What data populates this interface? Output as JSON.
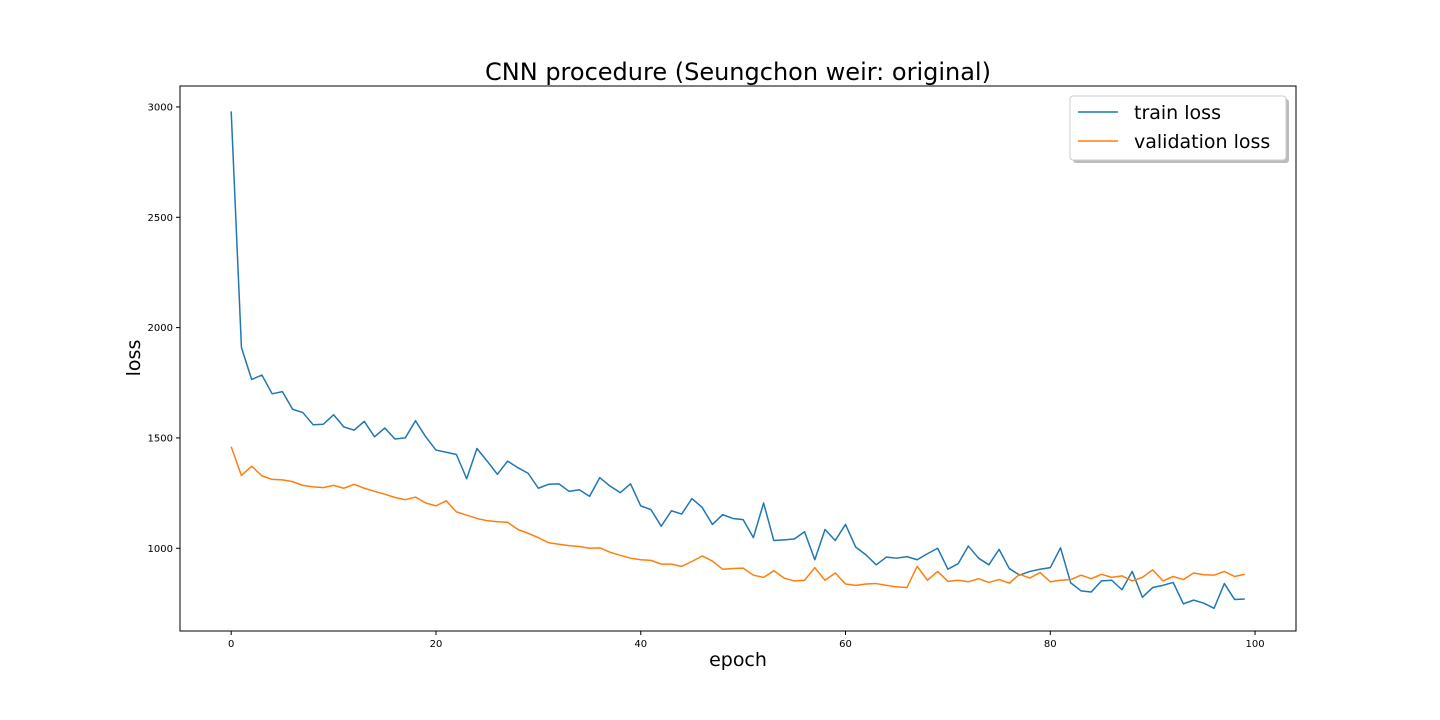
{
  "chart_data": {
    "type": "line",
    "title": "CNN procedure (Seungchon weir: original)",
    "xlabel": "epoch",
    "ylabel": "loss",
    "xlim": [
      -5,
      104
    ],
    "ylim": [
      625,
      3095
    ],
    "xticks": [
      0,
      20,
      40,
      60,
      80,
      100
    ],
    "yticks": [
      1000,
      1500,
      2000,
      2500,
      3000
    ],
    "grid": false,
    "legend_position": "top-right",
    "series": [
      {
        "name": "train loss",
        "color": "#1f77b4",
        "x": [
          0,
          1,
          2,
          3,
          4,
          5,
          6,
          7,
          8,
          9,
          10,
          11,
          12,
          13,
          14,
          15,
          16,
          17,
          18,
          19,
          20,
          21,
          22,
          23,
          24,
          25,
          26,
          27,
          28,
          29,
          30,
          31,
          32,
          33,
          34,
          35,
          36,
          37,
          38,
          39,
          40,
          41,
          42,
          43,
          44,
          45,
          46,
          47,
          48,
          49,
          50,
          51,
          52,
          53,
          54,
          55,
          56,
          57,
          58,
          59,
          60,
          61,
          62,
          63,
          64,
          65,
          66,
          67,
          68,
          69,
          70,
          71,
          72,
          73,
          74,
          75,
          76,
          77,
          78,
          79,
          80,
          81,
          82,
          83,
          84,
          85,
          86,
          87,
          88,
          89,
          90,
          91,
          92,
          93,
          94,
          95,
          96,
          97,
          98,
          99
        ],
        "values": [
          2980,
          1910,
          1765,
          1785,
          1700,
          1710,
          1630,
          1615,
          1560,
          1562,
          1605,
          1550,
          1535,
          1575,
          1505,
          1545,
          1495,
          1500,
          1578,
          1505,
          1445,
          1435,
          1425,
          1315,
          1452,
          1395,
          1335,
          1395,
          1365,
          1340,
          1272,
          1290,
          1292,
          1258,
          1265,
          1235,
          1320,
          1282,
          1252,
          1292,
          1192,
          1175,
          1100,
          1170,
          1155,
          1225,
          1185,
          1108,
          1152,
          1135,
          1130,
          1048,
          1205,
          1035,
          1038,
          1042,
          1075,
          948,
          1085,
          1035,
          1108,
          1005,
          970,
          925,
          960,
          955,
          962,
          948,
          975,
          1000,
          905,
          930,
          1010,
          955,
          925,
          995,
          908,
          878,
          895,
          905,
          912,
          1002,
          843,
          807,
          802,
          852,
          855,
          812,
          895,
          778,
          822,
          832,
          845,
          748,
          765,
          751,
          728,
          840,
          768,
          770
        ]
      },
      {
        "name": "validation loss",
        "color": "#ff7f0e",
        "x": [
          0,
          1,
          2,
          3,
          4,
          5,
          6,
          7,
          8,
          9,
          10,
          11,
          12,
          13,
          14,
          15,
          16,
          17,
          18,
          19,
          20,
          21,
          22,
          23,
          24,
          25,
          26,
          27,
          28,
          29,
          30,
          31,
          32,
          33,
          34,
          35,
          36,
          37,
          38,
          39,
          40,
          41,
          42,
          43,
          44,
          45,
          46,
          47,
          48,
          49,
          50,
          51,
          52,
          53,
          54,
          55,
          56,
          57,
          58,
          59,
          60,
          61,
          62,
          63,
          64,
          65,
          66,
          67,
          68,
          69,
          70,
          71,
          72,
          73,
          74,
          75,
          76,
          77,
          78,
          79,
          80,
          81,
          82,
          83,
          84,
          85,
          86,
          87,
          88,
          89,
          90,
          91,
          92,
          93,
          94,
          95,
          96,
          97,
          98,
          99
        ],
        "values": [
          1460,
          1330,
          1372,
          1328,
          1312,
          1310,
          1302,
          1285,
          1278,
          1275,
          1285,
          1272,
          1290,
          1272,
          1258,
          1245,
          1230,
          1220,
          1232,
          1205,
          1192,
          1215,
          1165,
          1150,
          1135,
          1125,
          1120,
          1118,
          1085,
          1068,
          1048,
          1025,
          1018,
          1012,
          1008,
          1000,
          1002,
          982,
          968,
          955,
          948,
          945,
          928,
          928,
          918,
          940,
          965,
          942,
          905,
          908,
          910,
          878,
          868,
          898,
          865,
          852,
          855,
          912,
          855,
          888,
          838,
          832,
          838,
          840,
          832,
          825,
          822,
          918,
          855,
          895,
          850,
          855,
          848,
          862,
          845,
          858,
          842,
          882,
          865,
          890,
          848,
          855,
          858,
          878,
          862,
          882,
          868,
          875,
          852,
          868,
          902,
          852,
          872,
          858,
          888,
          880,
          878,
          895,
          872,
          882
        ]
      }
    ]
  }
}
